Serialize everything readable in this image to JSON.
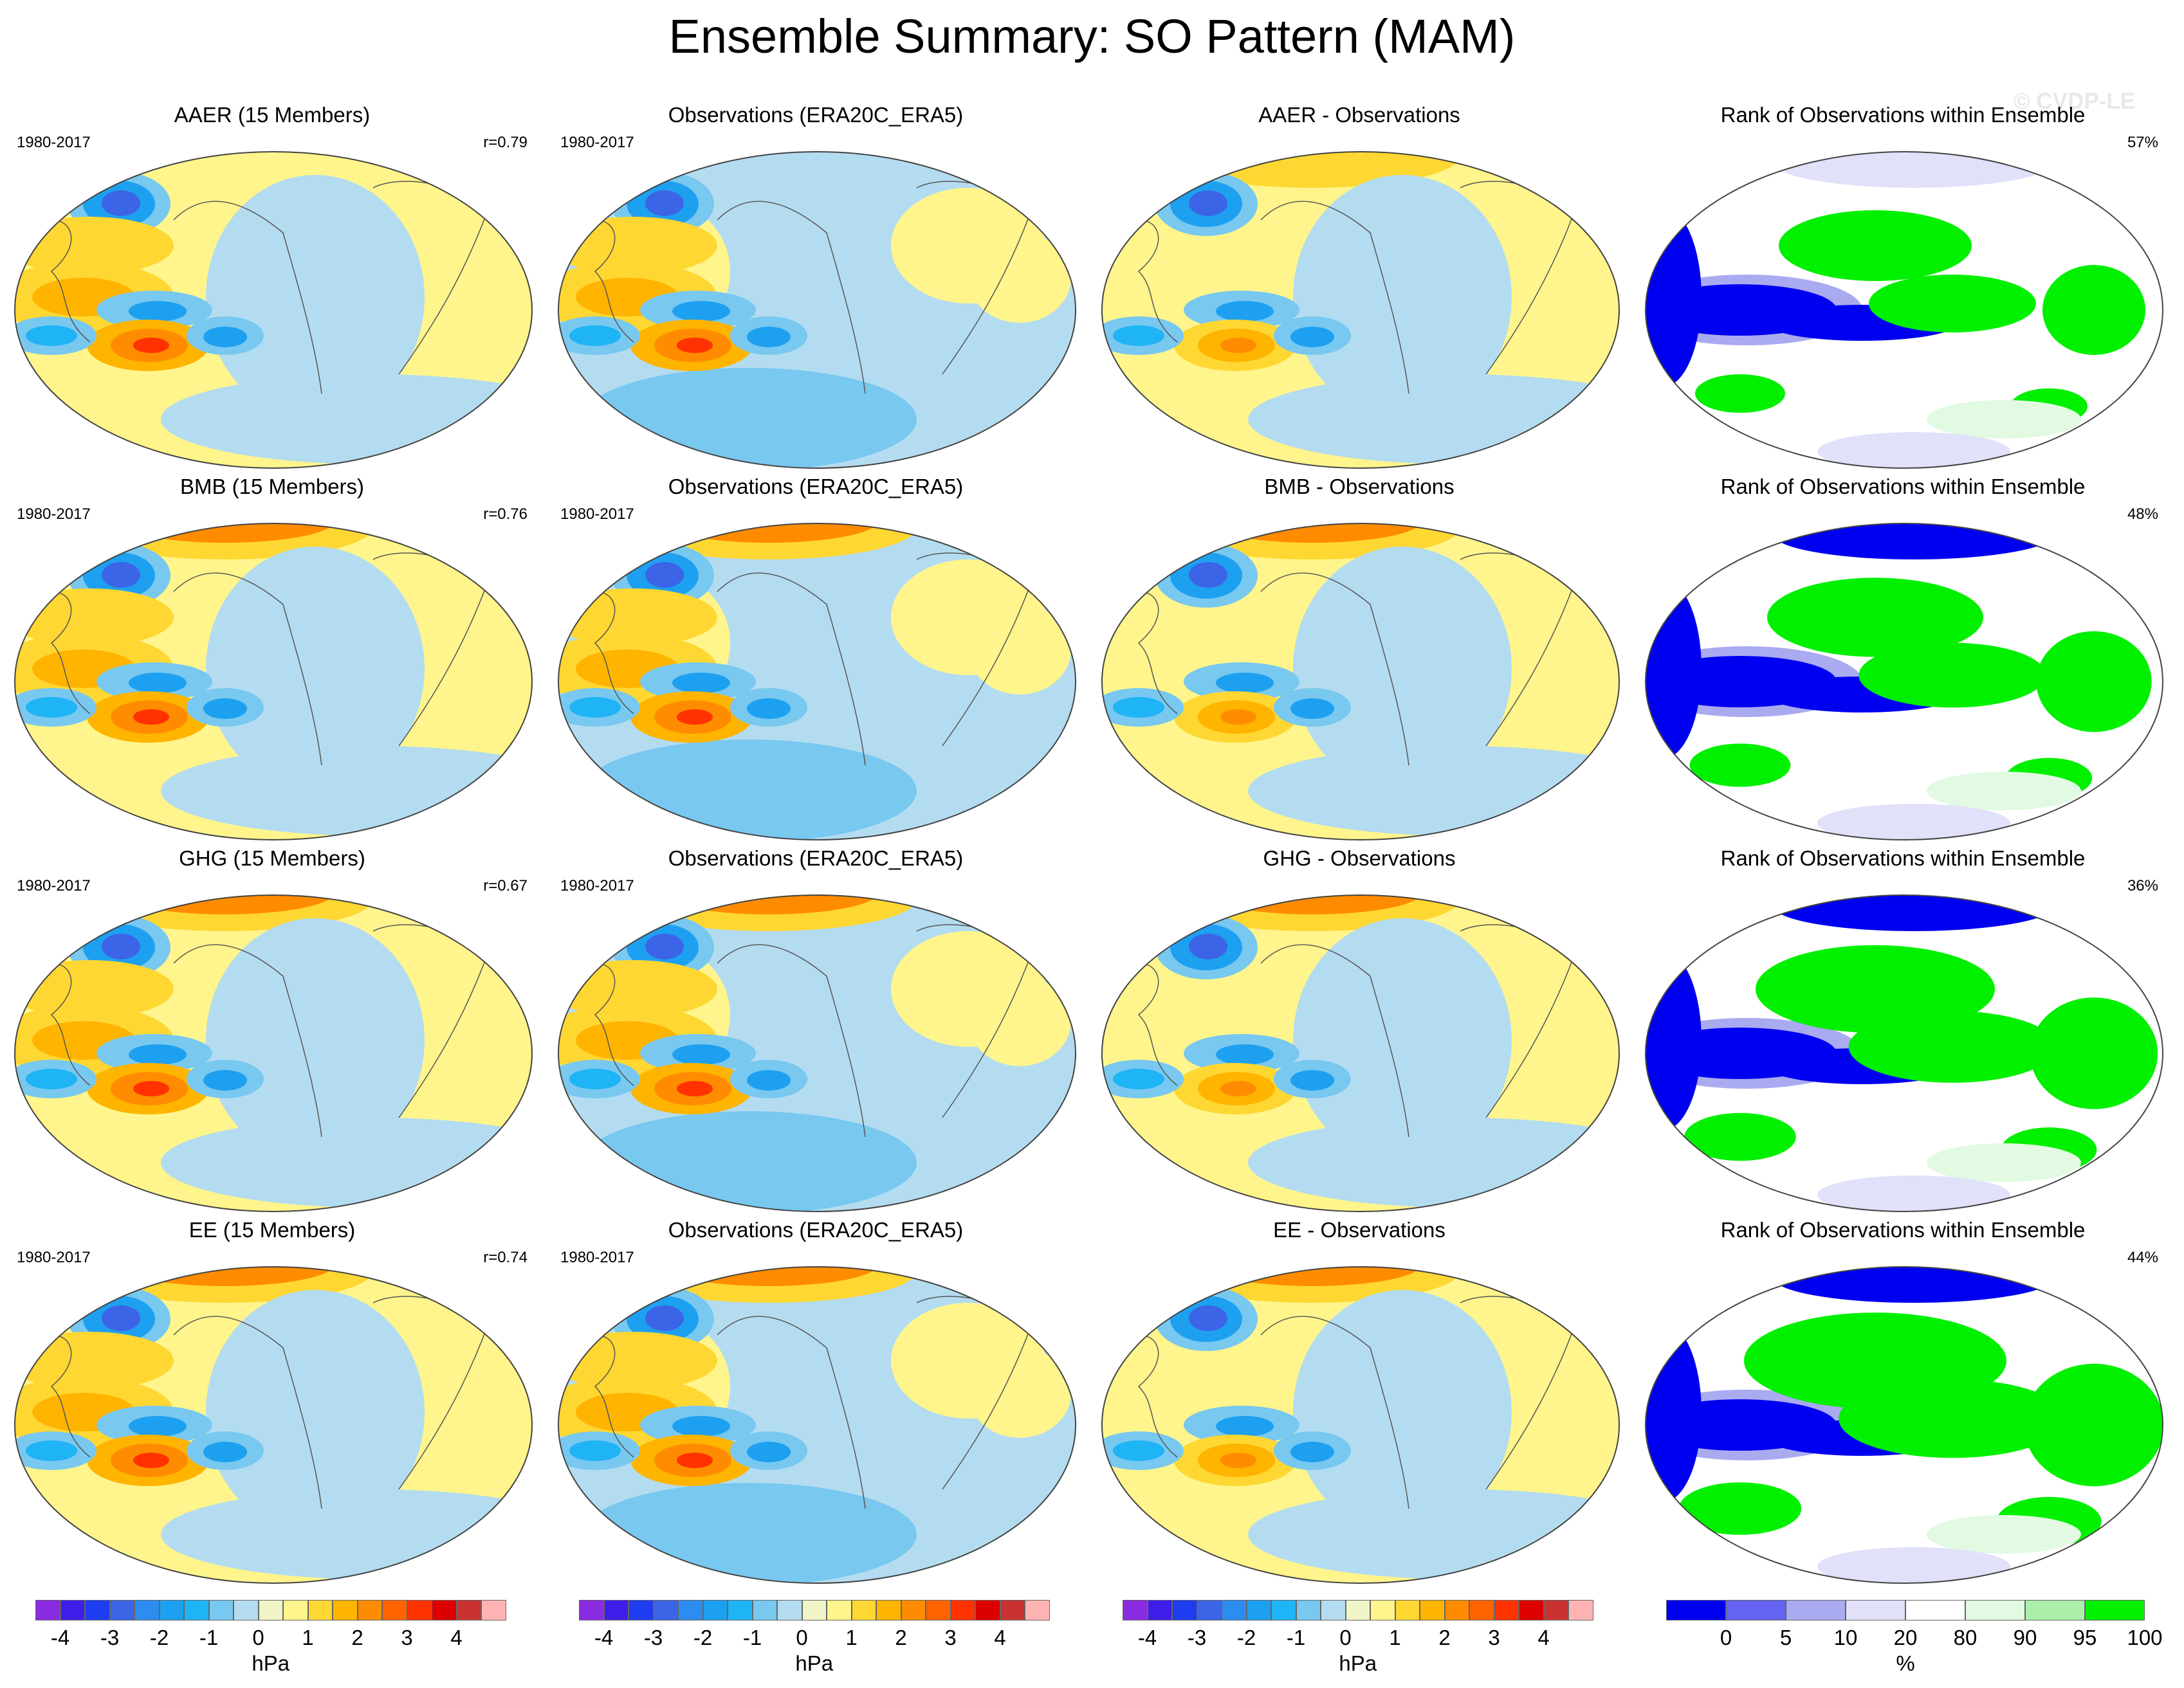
{
  "title": "Ensemble Summary: SO Pattern (MAM)",
  "watermark": "© CVDP-LE",
  "period": "1980-2017",
  "rows": [
    {
      "exp_title": "AAER (15 Members)",
      "r": "r=0.79",
      "obs_title": "Observations (ERA20C_ERA5)",
      "diff_title": "AAER - Observations",
      "rank_title": "Rank of Observations within Ensemble",
      "rank_pct": "57%"
    },
    {
      "exp_title": "BMB (15 Members)",
      "r": "r=0.76",
      "obs_title": "Observations (ERA20C_ERA5)",
      "diff_title": "BMB - Observations",
      "rank_title": "Rank of Observations within Ensemble",
      "rank_pct": "48%"
    },
    {
      "exp_title": "GHG (15 Members)",
      "r": "r=0.67",
      "obs_title": "Observations (ERA20C_ERA5)",
      "diff_title": "GHG - Observations",
      "rank_title": "Rank of Observations within Ensemble",
      "rank_pct": "36%"
    },
    {
      "exp_title": "EE (15 Members)",
      "r": "r=0.74",
      "obs_title": "Observations (ERA20C_ERA5)",
      "diff_title": "EE - Observations",
      "rank_title": "Rank of Observations within Ensemble",
      "rank_pct": "44%"
    }
  ],
  "chart_data": {
    "type": "heatmap",
    "projection": "Robinson-like global map",
    "pressure_colorbar": {
      "unit": "hPa",
      "tick_labels": [
        "-4",
        "-3",
        "-2",
        "-1",
        "0",
        "1",
        "2",
        "3",
        "4"
      ],
      "levels": [
        -4.5,
        -4,
        -3.5,
        -3,
        -2.5,
        -2,
        -1.5,
        -1,
        -0.5,
        0,
        0.5,
        1,
        1.5,
        2,
        2.5,
        3,
        3.5,
        4,
        4.5
      ],
      "colors": [
        "#8a2be2",
        "#3c1ee8",
        "#1e3cf0",
        "#3c64e6",
        "#2d8cf0",
        "#1ea0f0",
        "#1eb4f5",
        "#78c8f0",
        "#b4dcf0",
        "#f0f5c8",
        "#fff58c",
        "#ffd732",
        "#ffb400",
        "#ff8c00",
        "#ff6400",
        "#ff3200",
        "#dc0000",
        "#c83232",
        "#ffb4b4"
      ]
    },
    "rank_colorbar": {
      "unit": "%",
      "tick_labels": [
        "0",
        "5",
        "10",
        "20",
        "80",
        "90",
        "95",
        "100"
      ],
      "colors": [
        "#0000f0",
        "#6464f0",
        "#aaaaf0",
        "#e1e1fa",
        "#ffffff",
        "#e1fae1",
        "#aaf0aa",
        "#00f000"
      ]
    }
  }
}
